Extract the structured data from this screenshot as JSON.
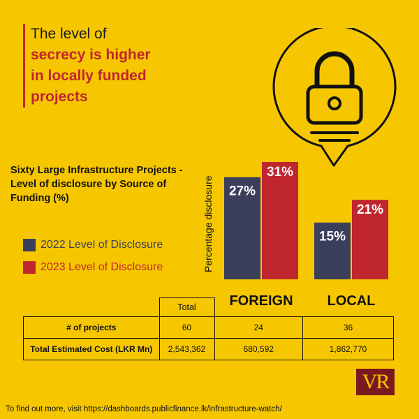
{
  "headline": {
    "line1": "The level of",
    "line2": "secrecy is higher",
    "line3": "in locally funded",
    "line4": "projects"
  },
  "subtitle": "Sixty Large Infrastructure Projects - Level of disclosure by Source of Funding (%)",
  "legend": {
    "item_2022": "2022 Level of Disclosure",
    "item_2023": "2023 Level of Disclosure"
  },
  "colors": {
    "background": "#f6c700",
    "series_2022": "#3b3f5c",
    "series_2023": "#c0262d",
    "accent": "#c0262d"
  },
  "chart_data": {
    "type": "bar",
    "categories": [
      "FOREIGN",
      "LOCAL"
    ],
    "series": [
      {
        "name": "2022 Level of Disclosure",
        "values": [
          27,
          15
        ],
        "labels": [
          "27%",
          "15%"
        ]
      },
      {
        "name": "2023 Level of Disclosure",
        "values": [
          31,
          21
        ],
        "labels": [
          "31%",
          "21%"
        ]
      }
    ],
    "title": "Sixty Large Infrastructure Projects - Level of disclosure by Source of Funding (%)",
    "xlabel": "",
    "ylabel": "Percentage disclosure",
    "ylim": [
      0,
      31
    ],
    "grid": false,
    "legend": "left"
  },
  "table": {
    "header_total": "Total",
    "rows": [
      {
        "label": "# of projects",
        "total": "60",
        "foreign": "24",
        "local": "36"
      },
      {
        "label": "Total Estimated Cost (LKR Mn)",
        "total": "2,543,362",
        "foreign": "680,592",
        "local": "1,862,770"
      }
    ]
  },
  "logo": {
    "text": "VR"
  },
  "footer": "To find out more, visit https://dashboards.publicfinance.lk/infrastructure-watch/",
  "icons": [
    "lock-icon",
    "speech-bubble-icon"
  ]
}
